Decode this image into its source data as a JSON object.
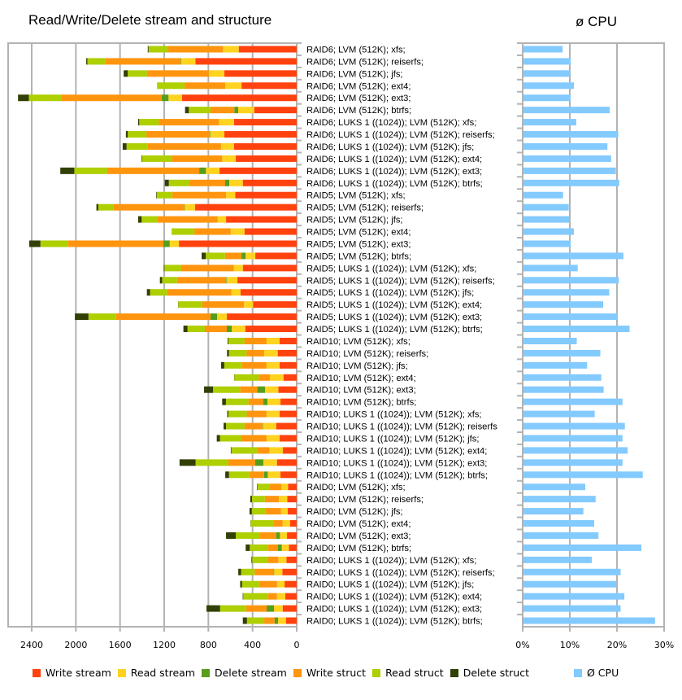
{
  "chart_data": [
    {
      "type": "bar",
      "orientation": "horizontal-stacked",
      "title": "Read/Write/Delete stream and structure",
      "xlim": [
        0,
        2400
      ],
      "x_reversed": true,
      "xticks": [
        "2400",
        "2000",
        "1600",
        "1200",
        "800",
        "400",
        "0"
      ],
      "grid": true,
      "legend_position": "bottom",
      "categories": [
        "RAID6; LVM (512K); xfs;",
        "RAID6; LVM (512K); reiserfs;",
        "RAID6; LVM (512K); jfs;",
        "RAID6; LVM (512K); ext4;",
        "RAID6; LVM (512K); ext3;",
        "RAID6; LVM (512K); btrfs;",
        "RAID6; LUKS 1 ((1024)); LVM (512K); xfs;",
        "RAID6; LUKS 1 ((1024)); LVM (512K); reiserfs;",
        "RAID6; LUKS 1 ((1024)); LVM (512K); jfs;",
        "RAID6; LUKS 1 ((1024)); LVM (512K); ext4;",
        "RAID6; LUKS 1 ((1024)); LVM (512K); ext3;",
        "RAID6; LUKS 1 ((1024)); LVM (512K); btrfs;",
        "RAID5; LVM (512K); xfs;",
        "RAID5; LVM (512K); reiserfs;",
        "RAID5; LVM (512K); jfs;",
        "RAID5; LVM (512K); ext4;",
        "RAID5; LVM (512K); ext3;",
        "RAID5; LVM (512K); btrfs;",
        "RAID5; LUKS 1 ((1024)); LVM (512K); xfs;",
        "RAID5; LUKS 1 ((1024)); LVM (512K); reiserfs;",
        "RAID5; LUKS 1 ((1024)); LVM (512K); jfs;",
        "RAID5; LUKS 1 ((1024)); LVM (512K); ext4;",
        "RAID5; LUKS 1 ((1024)); LVM (512K); ext3;",
        "RAID5; LUKS 1 ((1024)); LVM (512K); btrfs;",
        "RAID10; LVM (512K); xfs;",
        "RAID10; LVM (512K); reiserfs;",
        "RAID10; LVM (512K); jfs;",
        "RAID10; LVM (512K); ext4;",
        "RAID10; LVM (512K); ext3;",
        "RAID10; LVM (512K); btrfs;",
        "RAID10; LUKS 1 ((1024)); LVM (512K); xfs;",
        "RAID10; LUKS 1 ((1024)); LVM (512K); reiserfs",
        "RAID10; LUKS 1 ((1024)); LVM (512K); jfs;",
        "RAID10; LUKS 1 ((1024)); LVM (512K); ext4;",
        "RAID10; LUKS 1 ((1024)); LVM (512K); ext3;",
        "RAID10; LUKS 1 ((1024)); LVM (512K); btrfs;",
        "RAID0; LVM (512K); xfs;",
        "RAID0; LVM (512K); reiserfs;",
        "RAID0; LVM (512K); jfs;",
        "RAID0; LVM (512K); ext4;",
        "RAID0; LVM (512K); ext3;",
        "RAID0; LVM (512K); btrfs;",
        "RAID0; LUKS 1 ((1024)); LVM (512K); xfs;",
        "RAID0; LUKS 1 ((1024)); LVM (512K); reiserfs;",
        "RAID0; LUKS 1 ((1024)); LVM (512K); jfs;",
        "RAID0; LUKS 1 ((1024)); LVM (512K); ext4;",
        "RAID0; LUKS 1 ((1024)); LVM (512K); ext3;",
        "RAID0; LUKS 1 ((1024)); LVM (512K); btrfs;"
      ],
      "series": [
        {
          "name": "Write stream",
          "color": "#ff420e",
          "values": [
            525,
            918,
            655,
            500,
            1038,
            385,
            567,
            655,
            567,
            552,
            699,
            488,
            557,
            920,
            640,
            473,
            1067,
            375,
            488,
            537,
            508,
            395,
            633,
            466,
            155,
            172,
            155,
            120,
            167,
            147,
            155,
            186,
            155,
            125,
            179,
            147,
            79,
            86,
            81,
            61,
            88,
            71,
            93,
            130,
            110,
            103,
            127,
            98
          ]
        },
        {
          "name": "Read stream",
          "color": "#ffd320",
          "values": [
            143,
            130,
            140,
            147,
            123,
            145,
            137,
            127,
            118,
            123,
            123,
            123,
            83,
            94,
            76,
            125,
            83,
            88,
            81,
            98,
            83,
            83,
            88,
            123,
            118,
            123,
            118,
            123,
            120,
            118,
            118,
            120,
            118,
            123,
            123,
            115,
            59,
            76,
            61,
            66,
            64,
            64,
            74,
            74,
            68,
            76,
            79,
            71
          ]
        },
        {
          "name": "Delete stream",
          "color": "#579d1c",
          "values": [
            0,
            5,
            0,
            0,
            61,
            35,
            0,
            5,
            0,
            0,
            61,
            37,
            0,
            5,
            0,
            0,
            57,
            37,
            0,
            5,
            0,
            0,
            59,
            44,
            0,
            2,
            0,
            0,
            71,
            37,
            0,
            5,
            0,
            0,
            74,
            34,
            0,
            0,
            0,
            0,
            34,
            37,
            0,
            5,
            0,
            0,
            66,
            32
          ]
        },
        {
          "name": "Write struct",
          "color": "#ff950e",
          "values": [
            495,
            678,
            561,
            368,
            910,
            216,
            545,
            574,
            665,
            456,
            834,
            326,
            488,
            640,
            545,
            329,
            864,
            150,
            479,
            444,
            582,
            378,
            856,
            199,
            201,
            157,
            221,
            101,
            155,
            135,
            179,
            162,
            231,
            108,
            245,
            133,
            108,
            127,
            140,
            84,
            145,
            88,
            91,
            172,
            162,
            81,
            186,
            93
          ]
        },
        {
          "name": "Read struct",
          "color": "#aecf00",
          "values": [
            179,
            165,
            174,
            246,
            294,
            196,
            177,
            169,
            191,
            270,
            297,
            184,
            140,
            138,
            143,
            206,
            250,
            174,
            150,
            135,
            155,
            216,
            250,
            157,
            145,
            160,
            162,
            221,
            245,
            204,
            167,
            167,
            191,
            236,
            295,
            184,
            108,
            116,
            125,
            206,
            221,
            165,
            145,
            123,
            155,
            224,
            236,
            157
          ]
        },
        {
          "name": "Delete struct",
          "color": "#314004",
          "values": [
            7,
            10,
            37,
            2,
            98,
            34,
            10,
            17,
            35,
            5,
            127,
            37,
            5,
            17,
            32,
            0,
            101,
            37,
            5,
            20,
            29,
            2,
            123,
            37,
            7,
            17,
            29,
            2,
            81,
            34,
            10,
            22,
            29,
            5,
            145,
            34,
            5,
            15,
            20,
            2,
            88,
            37,
            7,
            25,
            17,
            5,
            123,
            37
          ]
        }
      ]
    },
    {
      "type": "bar",
      "orientation": "horizontal",
      "title": "ø CPU",
      "xlim": [
        0,
        30
      ],
      "unit": "%",
      "xticks": [
        "0%",
        "10%",
        "20%",
        "30%"
      ],
      "grid": true,
      "legend_position": "bottom",
      "series": [
        {
          "name": "Ø CPU",
          "color": "#83caff",
          "values": [
            8.3,
            10,
            9.9,
            10.7,
            10,
            18.3,
            11.2,
            20.1,
            17.8,
            18.6,
            19.6,
            20.3,
            8.4,
            9.6,
            9.7,
            10.7,
            10,
            21.2,
            11.5,
            20.2,
            18.2,
            16.9,
            20,
            22.5,
            11.3,
            16.3,
            13.5,
            16.5,
            17,
            21,
            15.1,
            21.5,
            21,
            22.1,
            21,
            25.3,
            13.1,
            15.3,
            12.7,
            15,
            15.9,
            25,
            14.5,
            20.6,
            19.7,
            21.4,
            20.6,
            27.9
          ]
        }
      ]
    }
  ]
}
